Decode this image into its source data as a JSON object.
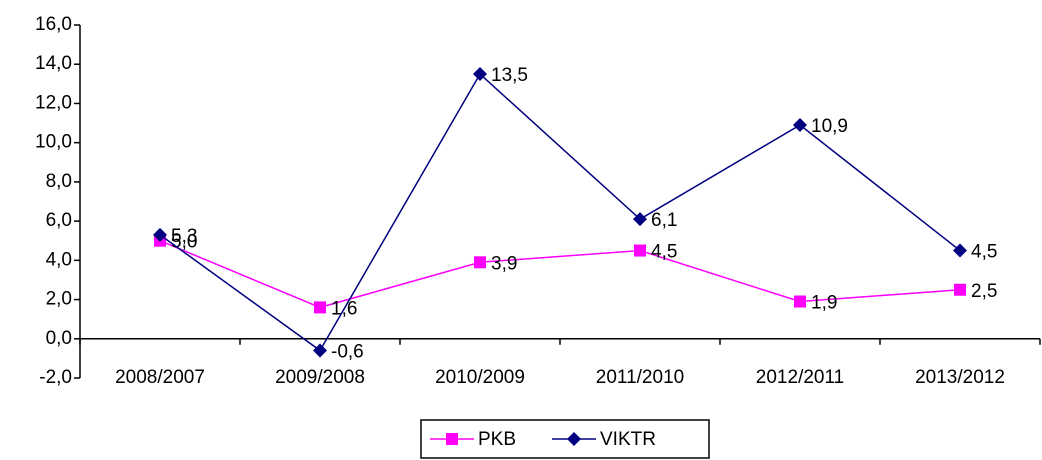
{
  "chart_data": {
    "type": "line",
    "categories": [
      "2008/2007",
      "2009/2008",
      "2010/2009",
      "2011/2010",
      "2012/2011",
      "2013/2012"
    ],
    "series": [
      {
        "name": "PKB",
        "color": "#ff00ff",
        "marker": "square",
        "values": [
          5.0,
          1.6,
          3.9,
          4.5,
          1.9,
          2.5
        ],
        "value_labels": [
          "5,0",
          "1,6",
          "3,9",
          "4,5",
          "1,9",
          "2,5"
        ]
      },
      {
        "name": "VIKTR",
        "color": "#000080",
        "marker": "diamond",
        "values": [
          5.3,
          -0.6,
          13.5,
          6.1,
          10.9,
          4.5
        ],
        "value_labels": [
          "5,3",
          "-0,6",
          "13,5",
          "6,1",
          "10,9",
          "4,5"
        ]
      }
    ],
    "ylim": [
      -2,
      16
    ],
    "yticks": [
      {
        "value": -2,
        "label": "-2,0"
      },
      {
        "value": 0,
        "label": "0,0"
      },
      {
        "value": 2,
        "label": "2,0"
      },
      {
        "value": 4,
        "label": "4,0"
      },
      {
        "value": 6,
        "label": "6,0"
      },
      {
        "value": 8,
        "label": "8,0"
      },
      {
        "value": 10,
        "label": "10,0"
      },
      {
        "value": 12,
        "label": "12,0"
      },
      {
        "value": 14,
        "label": "14,0"
      },
      {
        "value": 16,
        "label": "16,0"
      }
    ],
    "legend": "bottom"
  }
}
